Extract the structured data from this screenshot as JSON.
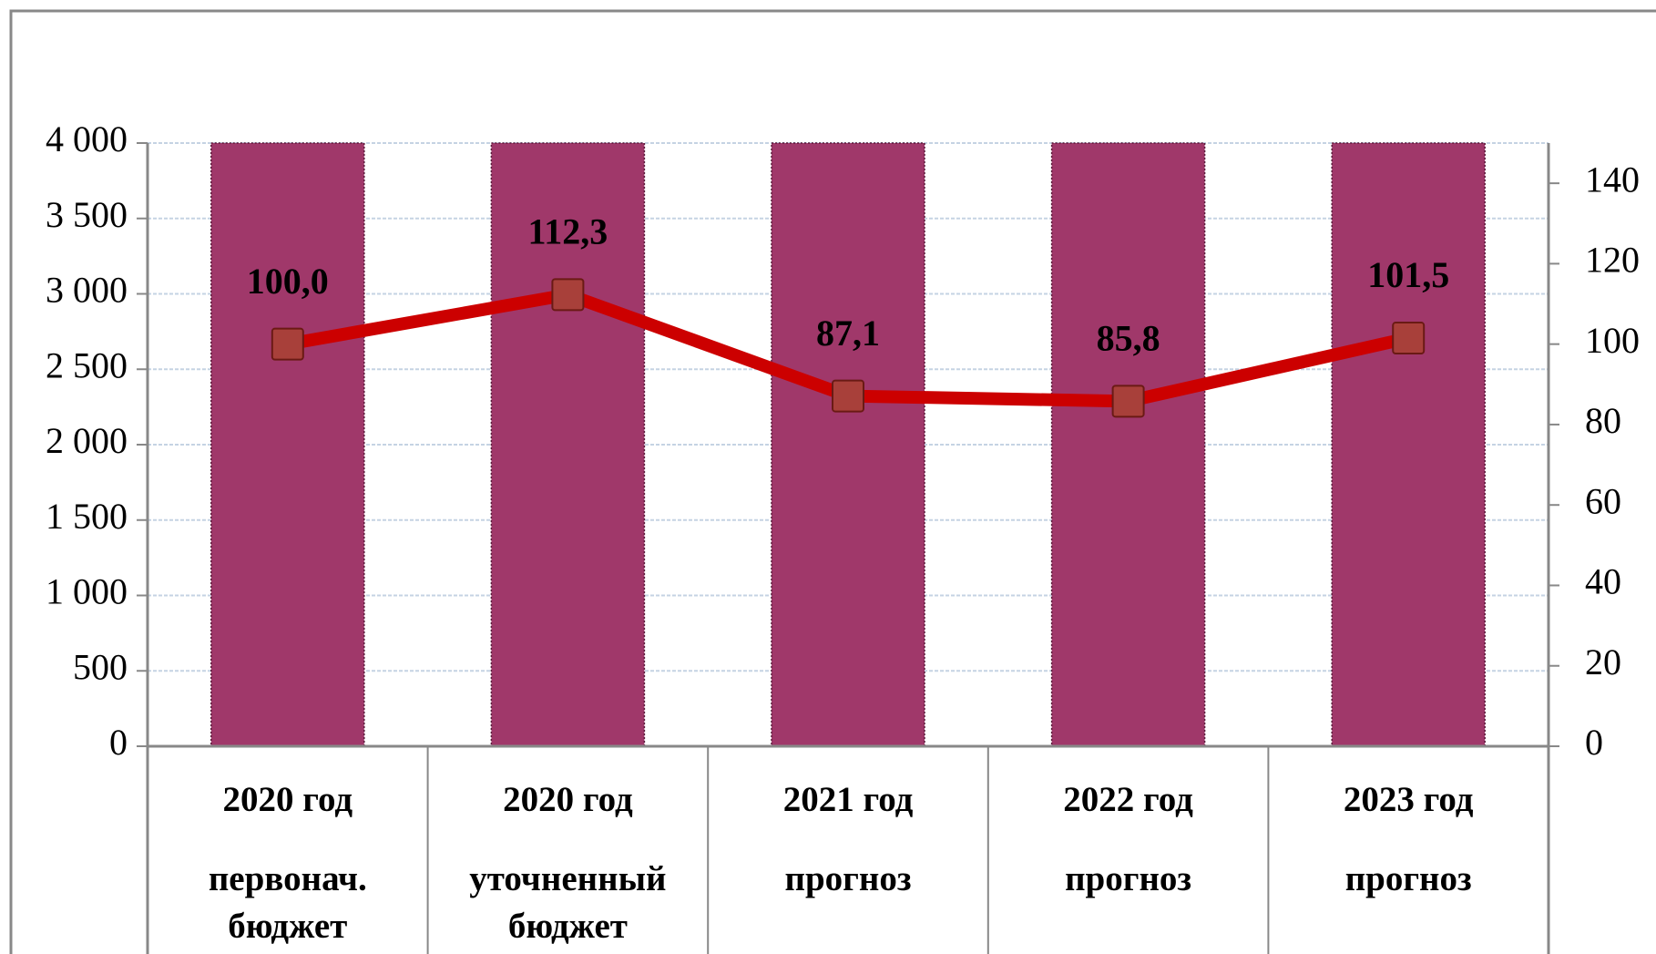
{
  "chart_data": {
    "type": "bar_line",
    "categories": [
      [
        "2020 год",
        "первонач.",
        "бюджет"
      ],
      [
        "2020 год",
        "уточненный",
        "бюджет"
      ],
      [
        "2021 год",
        "прогноз"
      ],
      [
        "2022 год",
        "прогноз"
      ],
      [
        "2023 год",
        "прогноз"
      ]
    ],
    "series": [
      {
        "type": "bar",
        "color": "#a0386a",
        "values": [
          4000,
          4000,
          4000,
          4000,
          4000
        ]
      },
      {
        "type": "line",
        "axis": "y2",
        "color": "#cc0000",
        "marker_color": "#a8403a",
        "values": [
          100.0,
          112.3,
          87.1,
          85.8,
          101.5
        ],
        "value_labels": [
          "100,0",
          "112,3",
          "87,1",
          "85,8",
          "101,5"
        ]
      }
    ],
    "ylim": [
      0,
      4000
    ],
    "yticks": [
      0,
      500,
      {
        "value": 1000,
        "label": "1 000"
      },
      {
        "value": 1500,
        "label": "1 500"
      },
      {
        "value": 2000,
        "label": "2 000"
      },
      {
        "value": 2500,
        "label": "2 500"
      },
      {
        "value": 3000,
        "label": "3 000"
      },
      {
        "value": 3500,
        "label": "3 500"
      },
      {
        "value": 4000,
        "label": "4 000"
      }
    ],
    "y2lim": [
      0,
      150
    ],
    "y2ticks": [
      0,
      20,
      40,
      60,
      80,
      100,
      120,
      140
    ],
    "grid": true
  }
}
